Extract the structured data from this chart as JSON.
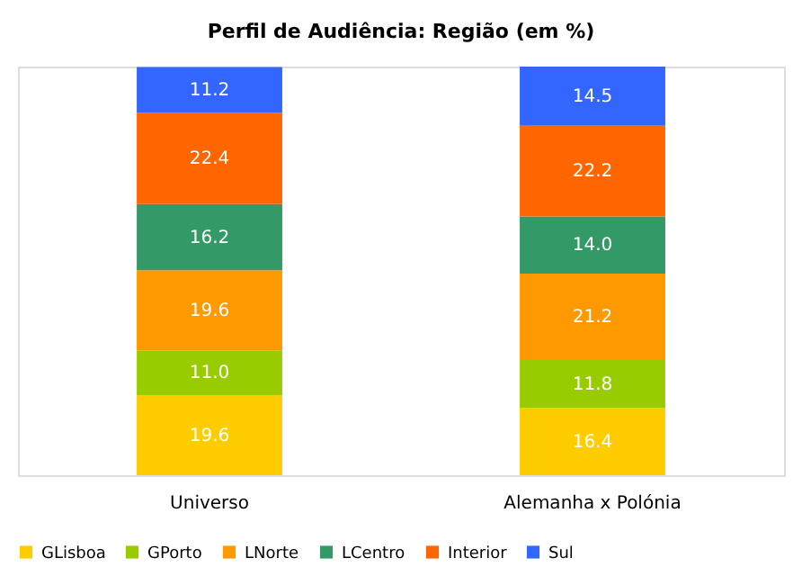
{
  "chart_data": {
    "type": "bar",
    "title": "Perfil de Audiência: Região (em %)",
    "categories": [
      "Universo",
      "Alemanha x Polónia"
    ],
    "stacked": true,
    "legend": "bottom",
    "series": [
      {
        "name": "GLisboa",
        "color": "#ffcc00",
        "values": [
          19.6,
          16.4
        ],
        "value_labels": [
          "19.6",
          "16.4"
        ]
      },
      {
        "name": "GPorto",
        "color": "#99cc00",
        "values": [
          11,
          11.8
        ],
        "value_labels": [
          "11.0",
          "11.8"
        ]
      },
      {
        "name": "LNorte",
        "color": "#ff9900",
        "values": [
          19.6,
          21.2
        ],
        "value_labels": [
          "19.6",
          "21.2"
        ]
      },
      {
        "name": "LCentro",
        "color": "#339966",
        "values": [
          16.2,
          14
        ],
        "value_labels": [
          "16.2",
          "14.0"
        ]
      },
      {
        "name": "Interior",
        "color": "#ff6600",
        "values": [
          22.4,
          22.2
        ],
        "value_labels": [
          "22.4",
          "22.2"
        ]
      },
      {
        "name": "Sul",
        "color": "#3366ff",
        "values": [
          11.2,
          14.5
        ],
        "value_labels": [
          "11.2",
          "14.5"
        ]
      }
    ]
  }
}
